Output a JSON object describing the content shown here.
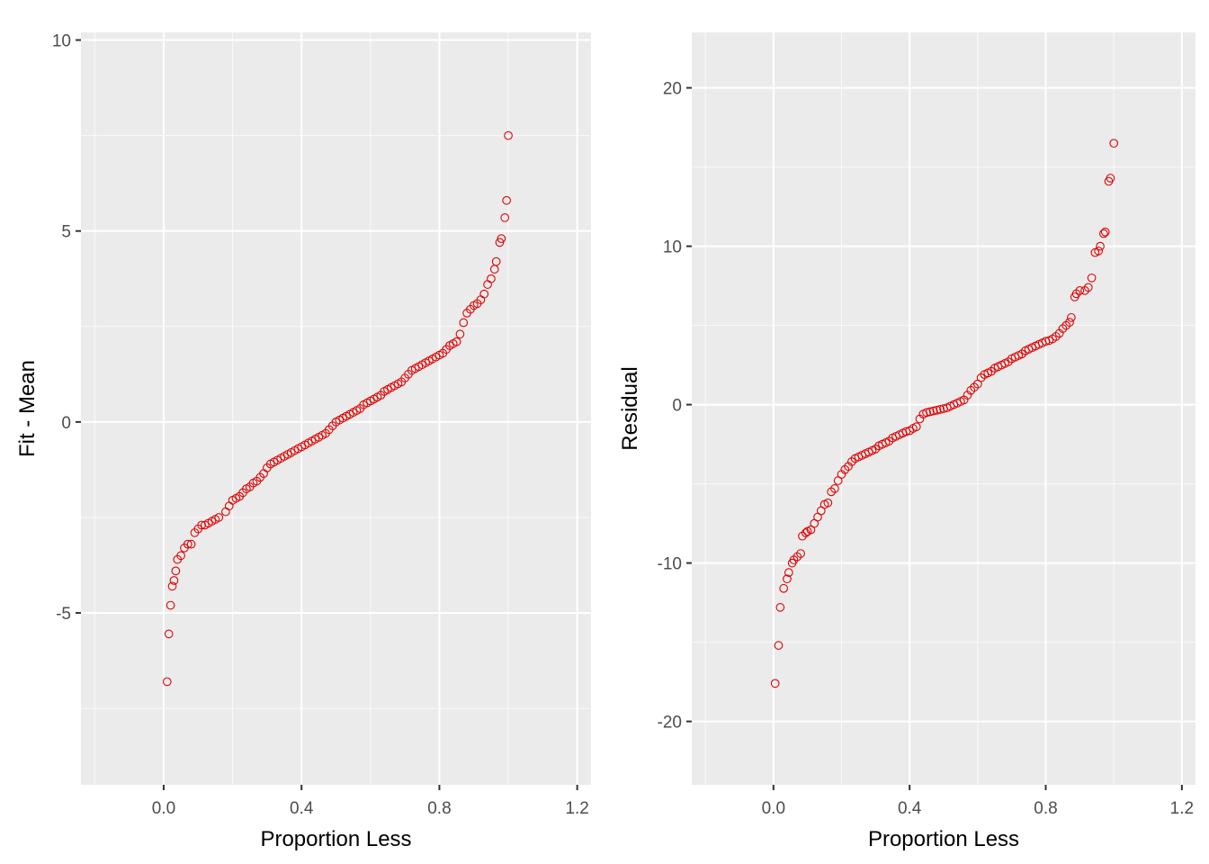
{
  "chart_data": [
    {
      "type": "scatter",
      "xlabel": "Proportion Less",
      "ylabel": "Fit - Mean",
      "xlim": [
        -0.24,
        1.24
      ],
      "ylim": [
        -9.5,
        10.2
      ],
      "x_ticks": [
        0.0,
        0.4,
        0.8,
        1.2
      ],
      "x_tick_labels": [
        "0.0",
        "0.4",
        "0.8",
        "1.2"
      ],
      "y_ticks": [
        -5,
        0,
        5,
        10
      ],
      "y_tick_labels": [
        "-5",
        "0",
        "5",
        "10"
      ],
      "grid": true,
      "point_color": "#e00000",
      "marker": "open-circle",
      "points": [
        [
          0.01,
          -6.8
        ],
        [
          0.015,
          -5.55
        ],
        [
          0.02,
          -4.8
        ],
        [
          0.025,
          -4.3
        ],
        [
          0.03,
          -4.15
        ],
        [
          0.035,
          -3.9
        ],
        [
          0.04,
          -3.6
        ],
        [
          0.05,
          -3.5
        ],
        [
          0.06,
          -3.3
        ],
        [
          0.07,
          -3.2
        ],
        [
          0.08,
          -3.2
        ],
        [
          0.09,
          -2.9
        ],
        [
          0.1,
          -2.8
        ],
        [
          0.11,
          -2.7
        ],
        [
          0.12,
          -2.7
        ],
        [
          0.13,
          -2.65
        ],
        [
          0.14,
          -2.6
        ],
        [
          0.15,
          -2.55
        ],
        [
          0.16,
          -2.5
        ],
        [
          0.18,
          -2.35
        ],
        [
          0.19,
          -2.2
        ],
        [
          0.2,
          -2.05
        ],
        [
          0.21,
          -2.0
        ],
        [
          0.22,
          -1.95
        ],
        [
          0.23,
          -1.85
        ],
        [
          0.24,
          -1.75
        ],
        [
          0.25,
          -1.7
        ],
        [
          0.26,
          -1.6
        ],
        [
          0.27,
          -1.55
        ],
        [
          0.28,
          -1.45
        ],
        [
          0.29,
          -1.35
        ],
        [
          0.3,
          -1.2
        ],
        [
          0.31,
          -1.1
        ],
        [
          0.32,
          -1.05
        ],
        [
          0.33,
          -1.0
        ],
        [
          0.34,
          -0.95
        ],
        [
          0.35,
          -0.9
        ],
        [
          0.36,
          -0.85
        ],
        [
          0.37,
          -0.8
        ],
        [
          0.38,
          -0.75
        ],
        [
          0.39,
          -0.7
        ],
        [
          0.4,
          -0.65
        ],
        [
          0.41,
          -0.6
        ],
        [
          0.42,
          -0.55
        ],
        [
          0.43,
          -0.5
        ],
        [
          0.44,
          -0.45
        ],
        [
          0.45,
          -0.4
        ],
        [
          0.46,
          -0.35
        ],
        [
          0.47,
          -0.3
        ],
        [
          0.48,
          -0.2
        ],
        [
          0.49,
          -0.1
        ],
        [
          0.5,
          0.0
        ],
        [
          0.51,
          0.05
        ],
        [
          0.52,
          0.1
        ],
        [
          0.53,
          0.15
        ],
        [
          0.54,
          0.2
        ],
        [
          0.55,
          0.25
        ],
        [
          0.56,
          0.3
        ],
        [
          0.57,
          0.35
        ],
        [
          0.58,
          0.45
        ],
        [
          0.59,
          0.5
        ],
        [
          0.6,
          0.55
        ],
        [
          0.61,
          0.6
        ],
        [
          0.62,
          0.65
        ],
        [
          0.63,
          0.7
        ],
        [
          0.64,
          0.8
        ],
        [
          0.65,
          0.85
        ],
        [
          0.66,
          0.9
        ],
        [
          0.67,
          0.95
        ],
        [
          0.68,
          1.0
        ],
        [
          0.69,
          1.05
        ],
        [
          0.7,
          1.15
        ],
        [
          0.71,
          1.25
        ],
        [
          0.72,
          1.35
        ],
        [
          0.73,
          1.4
        ],
        [
          0.74,
          1.45
        ],
        [
          0.75,
          1.5
        ],
        [
          0.76,
          1.55
        ],
        [
          0.77,
          1.6
        ],
        [
          0.78,
          1.65
        ],
        [
          0.79,
          1.7
        ],
        [
          0.8,
          1.75
        ],
        [
          0.81,
          1.8
        ],
        [
          0.82,
          1.9
        ],
        [
          0.83,
          2.0
        ],
        [
          0.84,
          2.05
        ],
        [
          0.85,
          2.1
        ],
        [
          0.86,
          2.3
        ],
        [
          0.87,
          2.6
        ],
        [
          0.88,
          2.85
        ],
        [
          0.89,
          2.95
        ],
        [
          0.9,
          3.05
        ],
        [
          0.91,
          3.1
        ],
        [
          0.92,
          3.2
        ],
        [
          0.93,
          3.35
        ],
        [
          0.94,
          3.6
        ],
        [
          0.95,
          3.75
        ],
        [
          0.96,
          4.0
        ],
        [
          0.965,
          4.2
        ],
        [
          0.975,
          4.7
        ],
        [
          0.98,
          4.8
        ],
        [
          0.99,
          5.35
        ],
        [
          0.995,
          5.8
        ],
        [
          1.0,
          7.5
        ]
      ]
    },
    {
      "type": "scatter",
      "xlabel": "Proportion Less",
      "ylabel": "Residual",
      "xlim": [
        -0.24,
        1.24
      ],
      "ylim": [
        -24,
        23.5
      ],
      "x_ticks": [
        0.0,
        0.4,
        0.8,
        1.2
      ],
      "x_tick_labels": [
        "0.0",
        "0.4",
        "0.8",
        "1.2"
      ],
      "y_ticks": [
        -20,
        -10,
        0,
        10,
        20
      ],
      "y_tick_labels": [
        "-20",
        "-10",
        "0",
        "10",
        "20"
      ],
      "grid": true,
      "point_color": "#e00000",
      "marker": "open-circle",
      "points": [
        [
          0.005,
          -17.6
        ],
        [
          0.015,
          -15.2
        ],
        [
          0.02,
          -12.8
        ],
        [
          0.03,
          -11.6
        ],
        [
          0.04,
          -11.0
        ],
        [
          0.045,
          -10.6
        ],
        [
          0.055,
          -10.0
        ],
        [
          0.06,
          -9.8
        ],
        [
          0.07,
          -9.6
        ],
        [
          0.08,
          -9.4
        ],
        [
          0.085,
          -8.3
        ],
        [
          0.095,
          -8.1
        ],
        [
          0.1,
          -8.0
        ],
        [
          0.11,
          -7.9
        ],
        [
          0.12,
          -7.5
        ],
        [
          0.13,
          -7.1
        ],
        [
          0.14,
          -6.7
        ],
        [
          0.15,
          -6.3
        ],
        [
          0.16,
          -6.2
        ],
        [
          0.17,
          -5.5
        ],
        [
          0.18,
          -5.3
        ],
        [
          0.19,
          -4.8
        ],
        [
          0.2,
          -4.4
        ],
        [
          0.21,
          -4.1
        ],
        [
          0.22,
          -3.9
        ],
        [
          0.23,
          -3.6
        ],
        [
          0.24,
          -3.4
        ],
        [
          0.25,
          -3.3
        ],
        [
          0.26,
          -3.2
        ],
        [
          0.27,
          -3.1
        ],
        [
          0.28,
          -3.0
        ],
        [
          0.29,
          -2.9
        ],
        [
          0.3,
          -2.8
        ],
        [
          0.31,
          -2.6
        ],
        [
          0.32,
          -2.5
        ],
        [
          0.33,
          -2.4
        ],
        [
          0.34,
          -2.3
        ],
        [
          0.35,
          -2.1
        ],
        [
          0.36,
          -2.0
        ],
        [
          0.37,
          -1.9
        ],
        [
          0.38,
          -1.8
        ],
        [
          0.39,
          -1.7
        ],
        [
          0.4,
          -1.65
        ],
        [
          0.41,
          -1.5
        ],
        [
          0.42,
          -1.4
        ],
        [
          0.43,
          -0.9
        ],
        [
          0.44,
          -0.6
        ],
        [
          0.45,
          -0.5
        ],
        [
          0.46,
          -0.45
        ],
        [
          0.47,
          -0.4
        ],
        [
          0.48,
          -0.35
        ],
        [
          0.49,
          -0.3
        ],
        [
          0.5,
          -0.25
        ],
        [
          0.51,
          -0.2
        ],
        [
          0.52,
          -0.1
        ],
        [
          0.53,
          0.0
        ],
        [
          0.54,
          0.1
        ],
        [
          0.55,
          0.2
        ],
        [
          0.56,
          0.3
        ],
        [
          0.57,
          0.6
        ],
        [
          0.58,
          0.9
        ],
        [
          0.59,
          1.1
        ],
        [
          0.6,
          1.3
        ],
        [
          0.61,
          1.7
        ],
        [
          0.62,
          1.9
        ],
        [
          0.63,
          2.0
        ],
        [
          0.64,
          2.1
        ],
        [
          0.65,
          2.3
        ],
        [
          0.66,
          2.4
        ],
        [
          0.67,
          2.5
        ],
        [
          0.68,
          2.6
        ],
        [
          0.69,
          2.7
        ],
        [
          0.7,
          2.9
        ],
        [
          0.71,
          3.0
        ],
        [
          0.72,
          3.1
        ],
        [
          0.73,
          3.2
        ],
        [
          0.74,
          3.4
        ],
        [
          0.75,
          3.5
        ],
        [
          0.76,
          3.6
        ],
        [
          0.77,
          3.7
        ],
        [
          0.78,
          3.8
        ],
        [
          0.79,
          3.9
        ],
        [
          0.8,
          4.0
        ],
        [
          0.81,
          4.05
        ],
        [
          0.82,
          4.15
        ],
        [
          0.83,
          4.3
        ],
        [
          0.84,
          4.5
        ],
        [
          0.85,
          4.8
        ],
        [
          0.86,
          5.0
        ],
        [
          0.87,
          5.2
        ],
        [
          0.875,
          5.5
        ],
        [
          0.885,
          6.8
        ],
        [
          0.89,
          7.0
        ],
        [
          0.9,
          7.2
        ],
        [
          0.915,
          7.2
        ],
        [
          0.925,
          7.4
        ],
        [
          0.935,
          8.0
        ],
        [
          0.945,
          9.6
        ],
        [
          0.955,
          9.7
        ],
        [
          0.96,
          10.0
        ],
        [
          0.97,
          10.8
        ],
        [
          0.975,
          10.9
        ],
        [
          0.985,
          14.1
        ],
        [
          0.99,
          14.3
        ],
        [
          1.0,
          16.5
        ]
      ]
    }
  ]
}
